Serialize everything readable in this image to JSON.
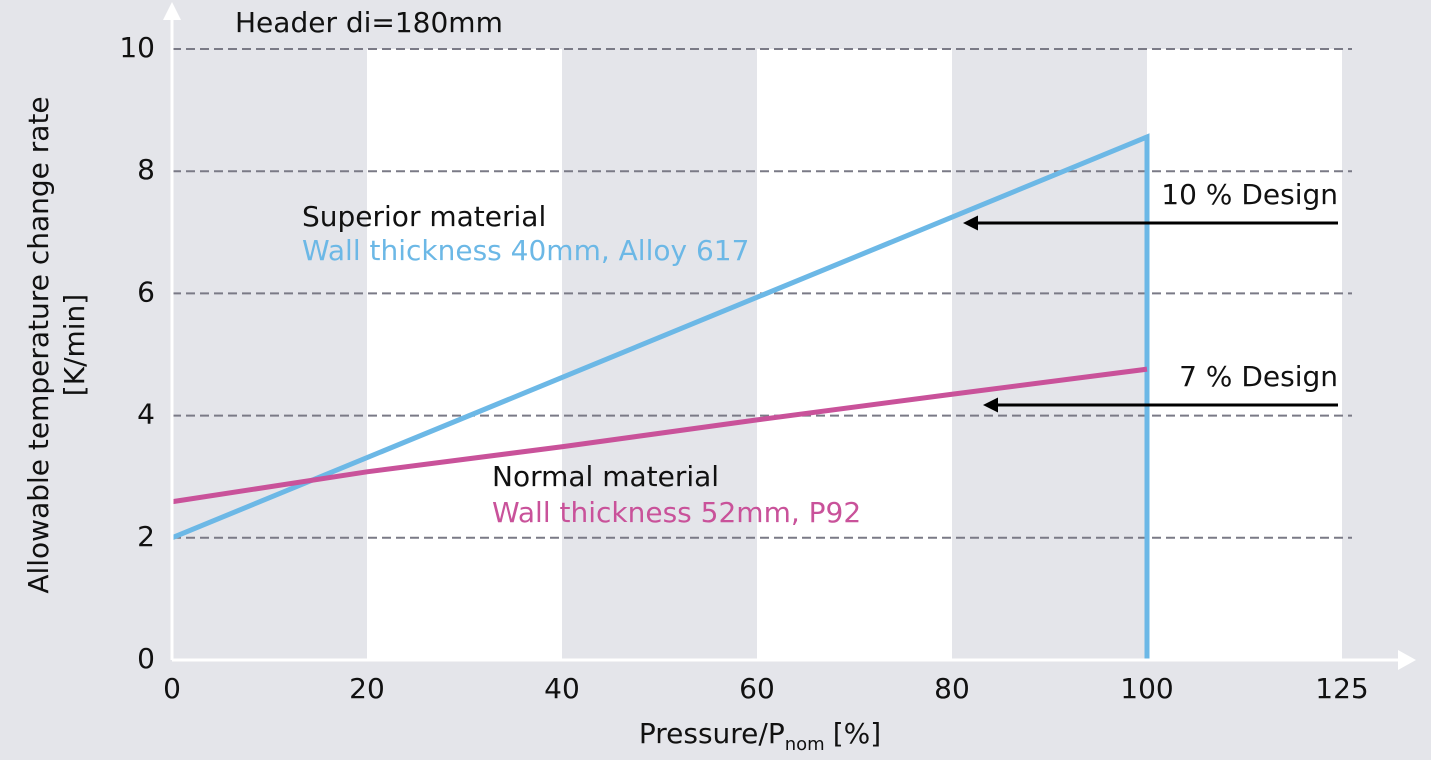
{
  "chart_data": {
    "type": "line",
    "title": "Header di=180mm",
    "x_label": {
      "main": "Pressure/P",
      "sub": "nom",
      "unit": "[%]"
    },
    "y_label": [
      "Allowable temperature change rate",
      "[K/min]"
    ],
    "xlim": [
      0,
      125
    ],
    "xticks": [
      0,
      20,
      40,
      60,
      80,
      100,
      125
    ],
    "x_scale": "equal-spaced-ticks",
    "ylim": [
      0,
      10
    ],
    "yticks": [
      0,
      2,
      4,
      6,
      8,
      10
    ],
    "grid": true,
    "bands": true,
    "series": [
      {
        "name": "Wall thickness 40mm, Alloy 617",
        "group": "Superior material",
        "color": "#6cb8e6",
        "x": [
          0,
          100,
          100
        ],
        "values": [
          2.0,
          8.56,
          0
        ]
      },
      {
        "name": "Wall thickness 52mm, P92",
        "group": "Normal material",
        "color": "#c9529a",
        "x": [
          0,
          20,
          40,
          60,
          80,
          100
        ],
        "values": [
          2.59,
          3.08,
          3.49,
          3.93,
          4.35,
          4.76
        ]
      }
    ],
    "annotations": [
      "10 % Design",
      "7 % Design"
    ]
  }
}
